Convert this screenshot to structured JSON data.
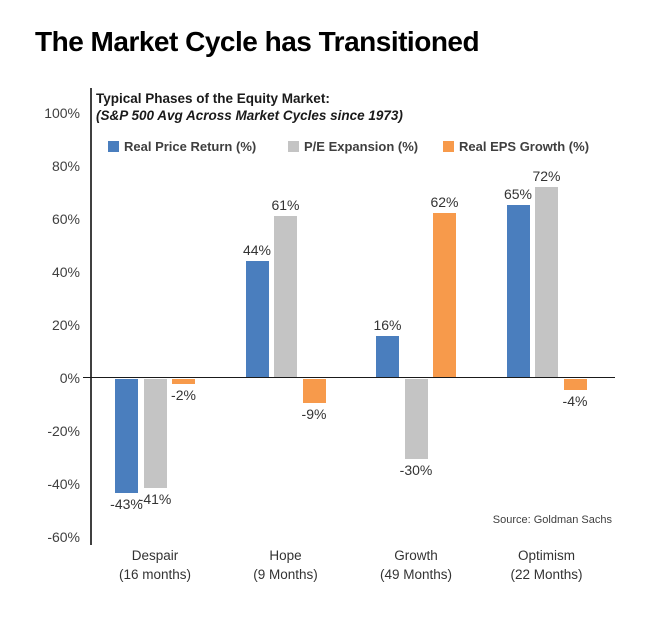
{
  "page_title": "The Market Cycle has Transitioned",
  "chart_data": {
    "type": "bar",
    "title": "Typical Phases of the Equity Market:",
    "subtitle": "(S&P 500 Avg Across Market Cycles since 1973)",
    "categories": [
      {
        "phase": "Despair",
        "duration": "(16 months)"
      },
      {
        "phase": "Hope",
        "duration": "(9 Months)"
      },
      {
        "phase": "Growth",
        "duration": "(49 Months)"
      },
      {
        "phase": "Optimism",
        "duration": "(22 Months)"
      }
    ],
    "series": [
      {
        "name": "Real Price Return (%)",
        "color": "#4A7EBE",
        "values": [
          -43,
          44,
          16,
          65
        ]
      },
      {
        "name": "P/E Expansion (%)",
        "color": "#C4C4C4",
        "values": [
          -41,
          61,
          -30,
          72
        ]
      },
      {
        "name": "Real EPS Growth (%)",
        "color": "#F79A4B",
        "values": [
          -2,
          -9,
          62,
          -4
        ]
      }
    ],
    "value_label_suffix": "%",
    "y_axis": {
      "ticks": [
        "100%",
        "80%",
        "60%",
        "40%",
        "20%",
        "0%",
        "-20%",
        "-40%",
        "-60%"
      ],
      "min": -60,
      "max": 100,
      "step": 20
    },
    "legend_position": "top",
    "grid": false
  },
  "source": "Source: Goldman Sachs"
}
